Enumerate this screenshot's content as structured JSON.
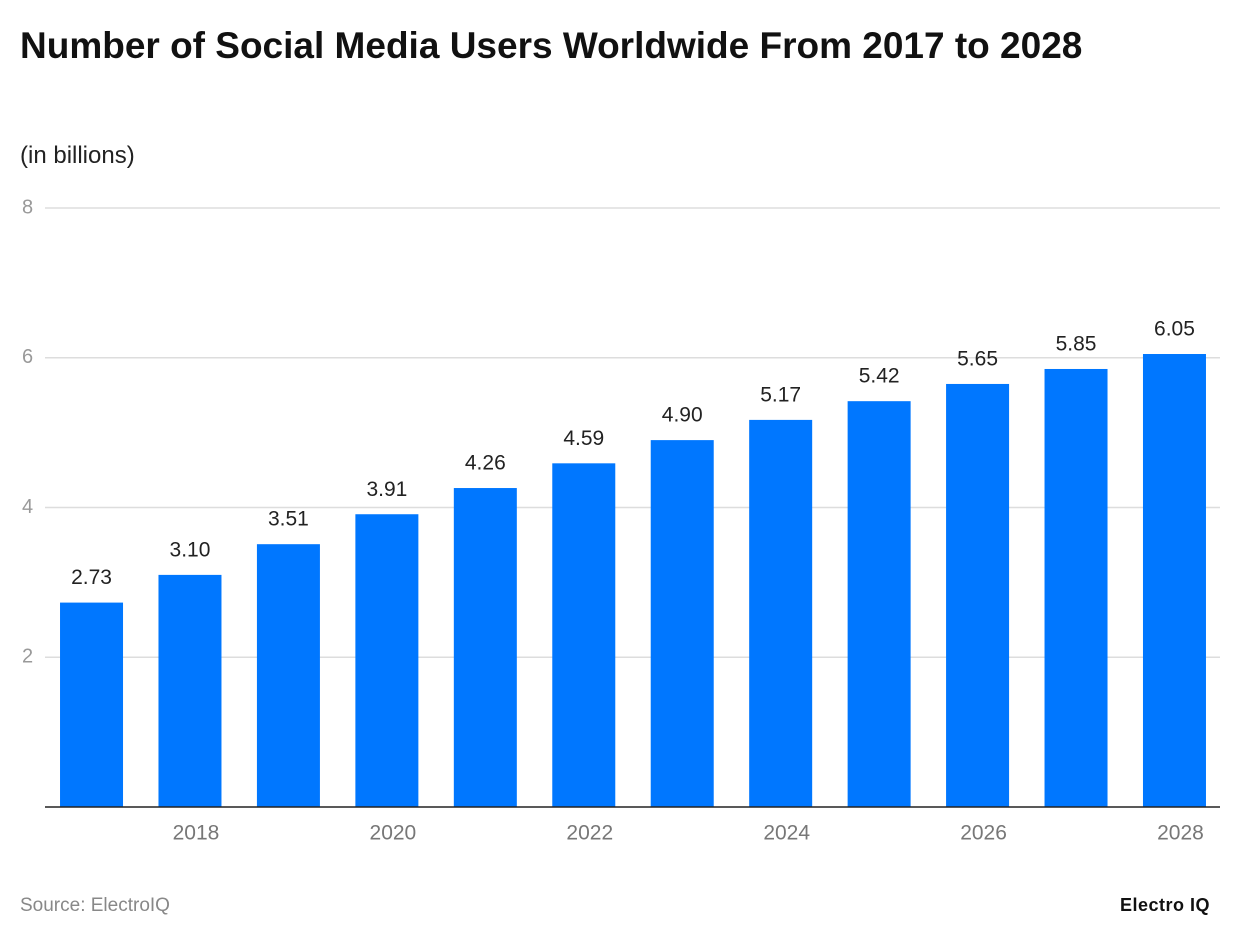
{
  "chart_data": {
    "type": "bar",
    "title": "Number of Social Media Users Worldwide From 2017 to 2028",
    "subtitle": "(in billions)",
    "categories": [
      null,
      "2018",
      null,
      "2020",
      null,
      "2022",
      null,
      "2024",
      null,
      "2026",
      null,
      "2028"
    ],
    "values": [
      2.73,
      3.1,
      3.51,
      3.91,
      4.26,
      4.59,
      4.9,
      5.17,
      5.42,
      5.65,
      5.85,
      6.05
    ],
    "value_labels": [
      "2.73",
      "3.10",
      "3.51",
      "3.91",
      "4.26",
      "4.59",
      "4.90",
      "5.17",
      "5.42",
      "5.65",
      "5.85",
      "6.05"
    ],
    "color": "#0077ff",
    "ylim": [
      0,
      8
    ],
    "yticks": [
      2,
      4,
      6,
      8
    ],
    "grid": true,
    "source": "Source: ElectroIQ",
    "logo": "Electro IQ"
  }
}
